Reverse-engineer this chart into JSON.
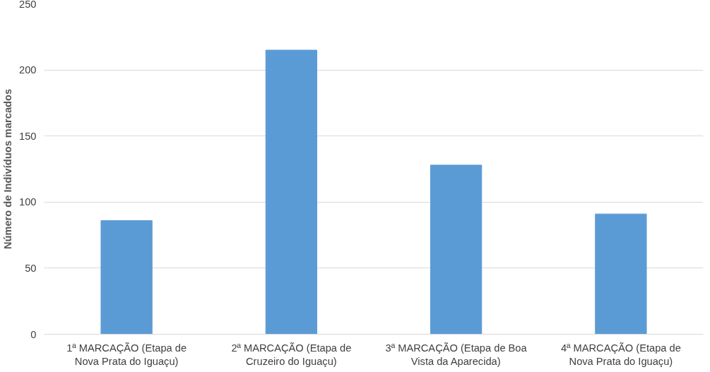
{
  "chart_data": {
    "type": "bar",
    "ylabel": "Número de Indivíduos marcados",
    "categories": [
      "1ª MARCAÇÃO (Etapa de Nova Prata do Iguaçu)",
      "2ª MARCAÇÃO (Etapa de Cruzeiro do Iguaçu)",
      "3ª MARCAÇÃO (Etapa de Boa Vista da Aparecida)",
      "4ª MARCAÇÃO (Etapa de Nova Prata do Iguaçu)"
    ],
    "values": [
      86,
      215,
      128,
      91
    ],
    "color": "#5b9bd5",
    "ylim": [
      0,
      250
    ],
    "yticks": [
      0,
      50,
      100,
      150,
      200,
      250
    ],
    "grid": "y"
  }
}
